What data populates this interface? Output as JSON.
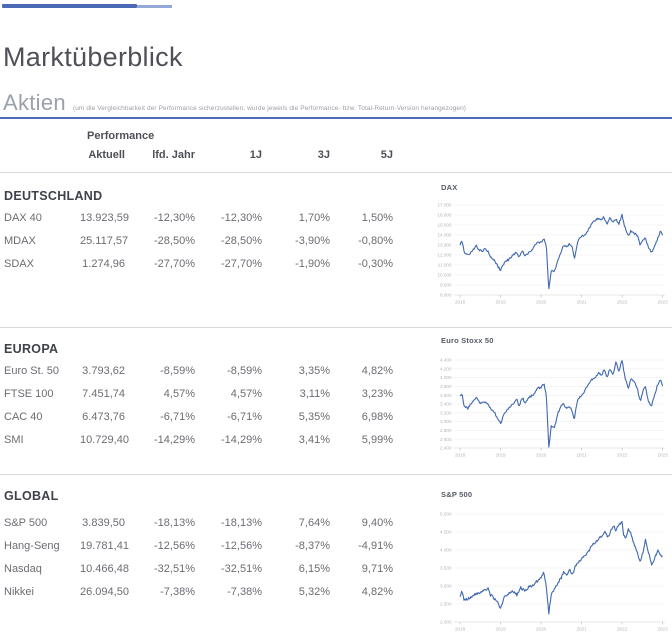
{
  "header": {
    "title": "Marktüberblick"
  },
  "aktien": {
    "title": "Aktien",
    "note": "(um die Vergleichbarkeit der Performance sicherzustellen, wurde jeweils die Performance- bzw. Total-Return-Version herangezogen)"
  },
  "table": {
    "group_header": "Performance",
    "columns": [
      "Aktuell",
      "lfd. Jahr",
      "1J",
      "3J",
      "5J"
    ],
    "sections": [
      {
        "name": "DEUTSCHLAND",
        "rows": [
          {
            "label": "DAX 40",
            "values": [
              "13.923,59",
              "-12,30%",
              "-12,30%",
              "1,70%",
              "1,50%"
            ]
          },
          {
            "label": "MDAX",
            "values": [
              "25.117,57",
              "-28,50%",
              "-28,50%",
              "-3,90%",
              "-0,80%"
            ]
          },
          {
            "label": "SDAX",
            "values": [
              "1.274,96",
              "-27,70%",
              "-27,70%",
              "-1,90%",
              "-0,30%"
            ]
          }
        ]
      },
      {
        "name": "EUROPA",
        "rows": [
          {
            "label": "Euro St. 50",
            "values": [
              "3.793,62",
              "-8,59%",
              "-8,59%",
              "3,35%",
              "4,82%"
            ]
          },
          {
            "label": "FTSE 100",
            "values": [
              "7.451,74",
              "4,57%",
              "4,57%",
              "3,11%",
              "3,23%"
            ]
          },
          {
            "label": "CAC 40",
            "values": [
              "6.473,76",
              "-6,71%",
              "-6,71%",
              "5,35%",
              "6,98%"
            ]
          },
          {
            "label": "SMI",
            "values": [
              "10.729,40",
              "-14,29%",
              "-14,29%",
              "3,41%",
              "5,99%"
            ]
          }
        ]
      },
      {
        "name": "GLOBAL",
        "rows": [
          {
            "label": "S&P 500",
            "values": [
              "3.839,50",
              "-18,13%",
              "-18,13%",
              "7,64%",
              "9,40%"
            ]
          },
          {
            "label": "Hang-Seng",
            "values": [
              "19.781,41",
              "-12,56%",
              "-12,56%",
              "-8,37%",
              "-4,91%"
            ]
          },
          {
            "label": "Nasdaq",
            "values": [
              "10.466,48",
              "-32,51%",
              "-32,51%",
              "6,15%",
              "9,71%"
            ]
          },
          {
            "label": "Nikkei",
            "values": [
              "26.094,50",
              "-7,38%",
              "-7,38%",
              "5,32%",
              "4,82%"
            ]
          }
        ]
      }
    ]
  },
  "colors": {
    "accent_blue": "#4a69b4",
    "accent_blue_light": "#93a8d6",
    "divider_blue": "#4e6cb8",
    "chart_line": "#3e68af",
    "gridline": "#ededed",
    "axis": "#cfcfcf",
    "axis_text": "#b2b5ba"
  },
  "chart_data": [
    {
      "type": "line",
      "title": "DAX",
      "ylim": [
        8000,
        17000
      ],
      "ytick_step": 1000,
      "xticks": [
        2018,
        2019,
        2020,
        2021,
        2022,
        2023
      ],
      "grid": true,
      "legend": "none",
      "points": [
        [
          2018.0,
          13100
        ],
        [
          2018.05,
          13350
        ],
        [
          2018.1,
          12350
        ],
        [
          2018.2,
          11950
        ],
        [
          2018.3,
          12450
        ],
        [
          2018.4,
          12950
        ],
        [
          2018.45,
          12550
        ],
        [
          2018.55,
          12350
        ],
        [
          2018.6,
          12600
        ],
        [
          2018.7,
          12350
        ],
        [
          2018.75,
          11850
        ],
        [
          2018.85,
          11500
        ],
        [
          2018.95,
          10750
        ],
        [
          2019.0,
          10480
        ],
        [
          2019.1,
          11250
        ],
        [
          2019.2,
          11550
        ],
        [
          2019.3,
          12000
        ],
        [
          2019.4,
          12250
        ],
        [
          2019.45,
          11750
        ],
        [
          2019.55,
          12400
        ],
        [
          2019.6,
          11850
        ],
        [
          2019.7,
          12300
        ],
        [
          2019.8,
          12650
        ],
        [
          2019.9,
          13250
        ],
        [
          2020.0,
          13300
        ],
        [
          2020.07,
          13680
        ],
        [
          2020.13,
          12900
        ],
        [
          2020.19,
          8450
        ],
        [
          2020.25,
          10400
        ],
        [
          2020.33,
          10300
        ],
        [
          2020.42,
          11600
        ],
        [
          2020.5,
          12400
        ],
        [
          2020.55,
          13000
        ],
        [
          2020.63,
          12850
        ],
        [
          2020.7,
          13100
        ],
        [
          2020.78,
          12650
        ],
        [
          2020.82,
          11600
        ],
        [
          2020.9,
          13300
        ],
        [
          2021.0,
          13900
        ],
        [
          2021.08,
          14050
        ],
        [
          2021.17,
          14550
        ],
        [
          2021.25,
          15150
        ],
        [
          2021.33,
          15450
        ],
        [
          2021.42,
          15650
        ],
        [
          2021.5,
          15550
        ],
        [
          2021.55,
          15800
        ],
        [
          2021.63,
          15100
        ],
        [
          2021.7,
          15850
        ],
        [
          2021.78,
          15250
        ],
        [
          2021.85,
          15600
        ],
        [
          2021.92,
          15100
        ],
        [
          2022.0,
          16020
        ],
        [
          2022.04,
          15200
        ],
        [
          2022.1,
          14450
        ],
        [
          2022.16,
          13900
        ],
        [
          2022.22,
          14450
        ],
        [
          2022.3,
          14150
        ],
        [
          2022.38,
          13900
        ],
        [
          2022.45,
          12950
        ],
        [
          2022.52,
          13450
        ],
        [
          2022.58,
          13700
        ],
        [
          2022.65,
          12750
        ],
        [
          2022.73,
          12250
        ],
        [
          2022.8,
          12950
        ],
        [
          2022.88,
          13650
        ],
        [
          2022.95,
          14450
        ],
        [
          2023.0,
          13950
        ]
      ]
    },
    {
      "type": "line",
      "title": "Euro Stoxx 50",
      "ylim": [
        2400,
        4400
      ],
      "ytick_step": 200,
      "xticks": [
        2018,
        2019,
        2020,
        2021,
        2022,
        2023
      ],
      "grid": true,
      "legend": "none",
      "points": [
        [
          2018.0,
          3580
        ],
        [
          2018.05,
          3650
        ],
        [
          2018.1,
          3350
        ],
        [
          2018.2,
          3300
        ],
        [
          2018.3,
          3450
        ],
        [
          2018.4,
          3550
        ],
        [
          2018.5,
          3400
        ],
        [
          2018.6,
          3450
        ],
        [
          2018.7,
          3400
        ],
        [
          2018.75,
          3300
        ],
        [
          2018.85,
          3200
        ],
        [
          2018.95,
          3050
        ],
        [
          2019.0,
          2950
        ],
        [
          2019.1,
          3200
        ],
        [
          2019.2,
          3300
        ],
        [
          2019.3,
          3400
        ],
        [
          2019.4,
          3500
        ],
        [
          2019.45,
          3350
        ],
        [
          2019.55,
          3550
        ],
        [
          2019.6,
          3400
        ],
        [
          2019.7,
          3550
        ],
        [
          2019.8,
          3600
        ],
        [
          2019.9,
          3750
        ],
        [
          2020.0,
          3780
        ],
        [
          2020.07,
          3860
        ],
        [
          2020.13,
          3600
        ],
        [
          2020.19,
          2400
        ],
        [
          2020.25,
          2900
        ],
        [
          2020.33,
          2850
        ],
        [
          2020.42,
          3200
        ],
        [
          2020.5,
          3350
        ],
        [
          2020.55,
          3400
        ],
        [
          2020.63,
          3300
        ],
        [
          2020.7,
          3350
        ],
        [
          2020.78,
          3200
        ],
        [
          2020.82,
          3050
        ],
        [
          2020.9,
          3500
        ],
        [
          2021.0,
          3600
        ],
        [
          2021.08,
          3700
        ],
        [
          2021.17,
          3850
        ],
        [
          2021.25,
          3950
        ],
        [
          2021.33,
          4000
        ],
        [
          2021.42,
          4100
        ],
        [
          2021.5,
          4050
        ],
        [
          2021.55,
          4200
        ],
        [
          2021.63,
          4000
        ],
        [
          2021.7,
          4200
        ],
        [
          2021.78,
          4050
        ],
        [
          2021.85,
          4350
        ],
        [
          2021.92,
          4150
        ],
        [
          2022.0,
          4400
        ],
        [
          2022.04,
          4150
        ],
        [
          2022.1,
          3900
        ],
        [
          2022.16,
          3750
        ],
        [
          2022.22,
          4000
        ],
        [
          2022.3,
          3900
        ],
        [
          2022.38,
          3750
        ],
        [
          2022.45,
          3450
        ],
        [
          2022.52,
          3700
        ],
        [
          2022.58,
          3800
        ],
        [
          2022.65,
          3450
        ],
        [
          2022.73,
          3350
        ],
        [
          2022.8,
          3600
        ],
        [
          2022.88,
          3850
        ],
        [
          2022.95,
          3950
        ],
        [
          2023.0,
          3800
        ]
      ]
    },
    {
      "type": "line",
      "title": "S&P 500",
      "ylim": [
        2000,
        5000
      ],
      "ytick_step": 500,
      "xticks": [
        2018,
        2019,
        2020,
        2021,
        2022,
        2023
      ],
      "grid": true,
      "legend": "none",
      "points": [
        [
          2018.0,
          2690
        ],
        [
          2018.05,
          2870
        ],
        [
          2018.1,
          2600
        ],
        [
          2018.2,
          2650
        ],
        [
          2018.3,
          2720
        ],
        [
          2018.4,
          2780
        ],
        [
          2018.5,
          2800
        ],
        [
          2018.6,
          2870
        ],
        [
          2018.7,
          2920
        ],
        [
          2018.75,
          2750
        ],
        [
          2018.85,
          2650
        ],
        [
          2018.95,
          2500
        ],
        [
          2019.0,
          2380
        ],
        [
          2019.1,
          2700
        ],
        [
          2019.2,
          2800
        ],
        [
          2019.3,
          2880
        ],
        [
          2019.4,
          2750
        ],
        [
          2019.5,
          2950
        ],
        [
          2019.6,
          2870
        ],
        [
          2019.7,
          2980
        ],
        [
          2019.8,
          3020
        ],
        [
          2019.9,
          3130
        ],
        [
          2020.0,
          3240
        ],
        [
          2020.07,
          3390
        ],
        [
          2020.13,
          3000
        ],
        [
          2020.19,
          2240
        ],
        [
          2020.25,
          2750
        ],
        [
          2020.33,
          2900
        ],
        [
          2020.42,
          3100
        ],
        [
          2020.5,
          3230
        ],
        [
          2020.55,
          3380
        ],
        [
          2020.63,
          3300
        ],
        [
          2020.7,
          3450
        ],
        [
          2020.78,
          3300
        ],
        [
          2020.85,
          3550
        ],
        [
          2020.92,
          3650
        ],
        [
          2021.0,
          3760
        ],
        [
          2021.08,
          3850
        ],
        [
          2021.17,
          3950
        ],
        [
          2021.25,
          4150
        ],
        [
          2021.33,
          4200
        ],
        [
          2021.42,
          4300
        ],
        [
          2021.5,
          4400
        ],
        [
          2021.58,
          4500
        ],
        [
          2021.65,
          4350
        ],
        [
          2021.73,
          4550
        ],
        [
          2021.8,
          4650
        ],
        [
          2021.85,
          4550
        ],
        [
          2021.92,
          4700
        ],
        [
          2022.0,
          4790
        ],
        [
          2022.04,
          4400
        ],
        [
          2022.1,
          4350
        ],
        [
          2022.16,
          4600
        ],
        [
          2022.22,
          4450
        ],
        [
          2022.3,
          4150
        ],
        [
          2022.38,
          3900
        ],
        [
          2022.45,
          3670
        ],
        [
          2022.52,
          3950
        ],
        [
          2022.58,
          4280
        ],
        [
          2022.65,
          3950
        ],
        [
          2022.73,
          3590
        ],
        [
          2022.8,
          3750
        ],
        [
          2022.88,
          4000
        ],
        [
          2022.95,
          3850
        ],
        [
          2023.0,
          3840
        ]
      ]
    }
  ]
}
